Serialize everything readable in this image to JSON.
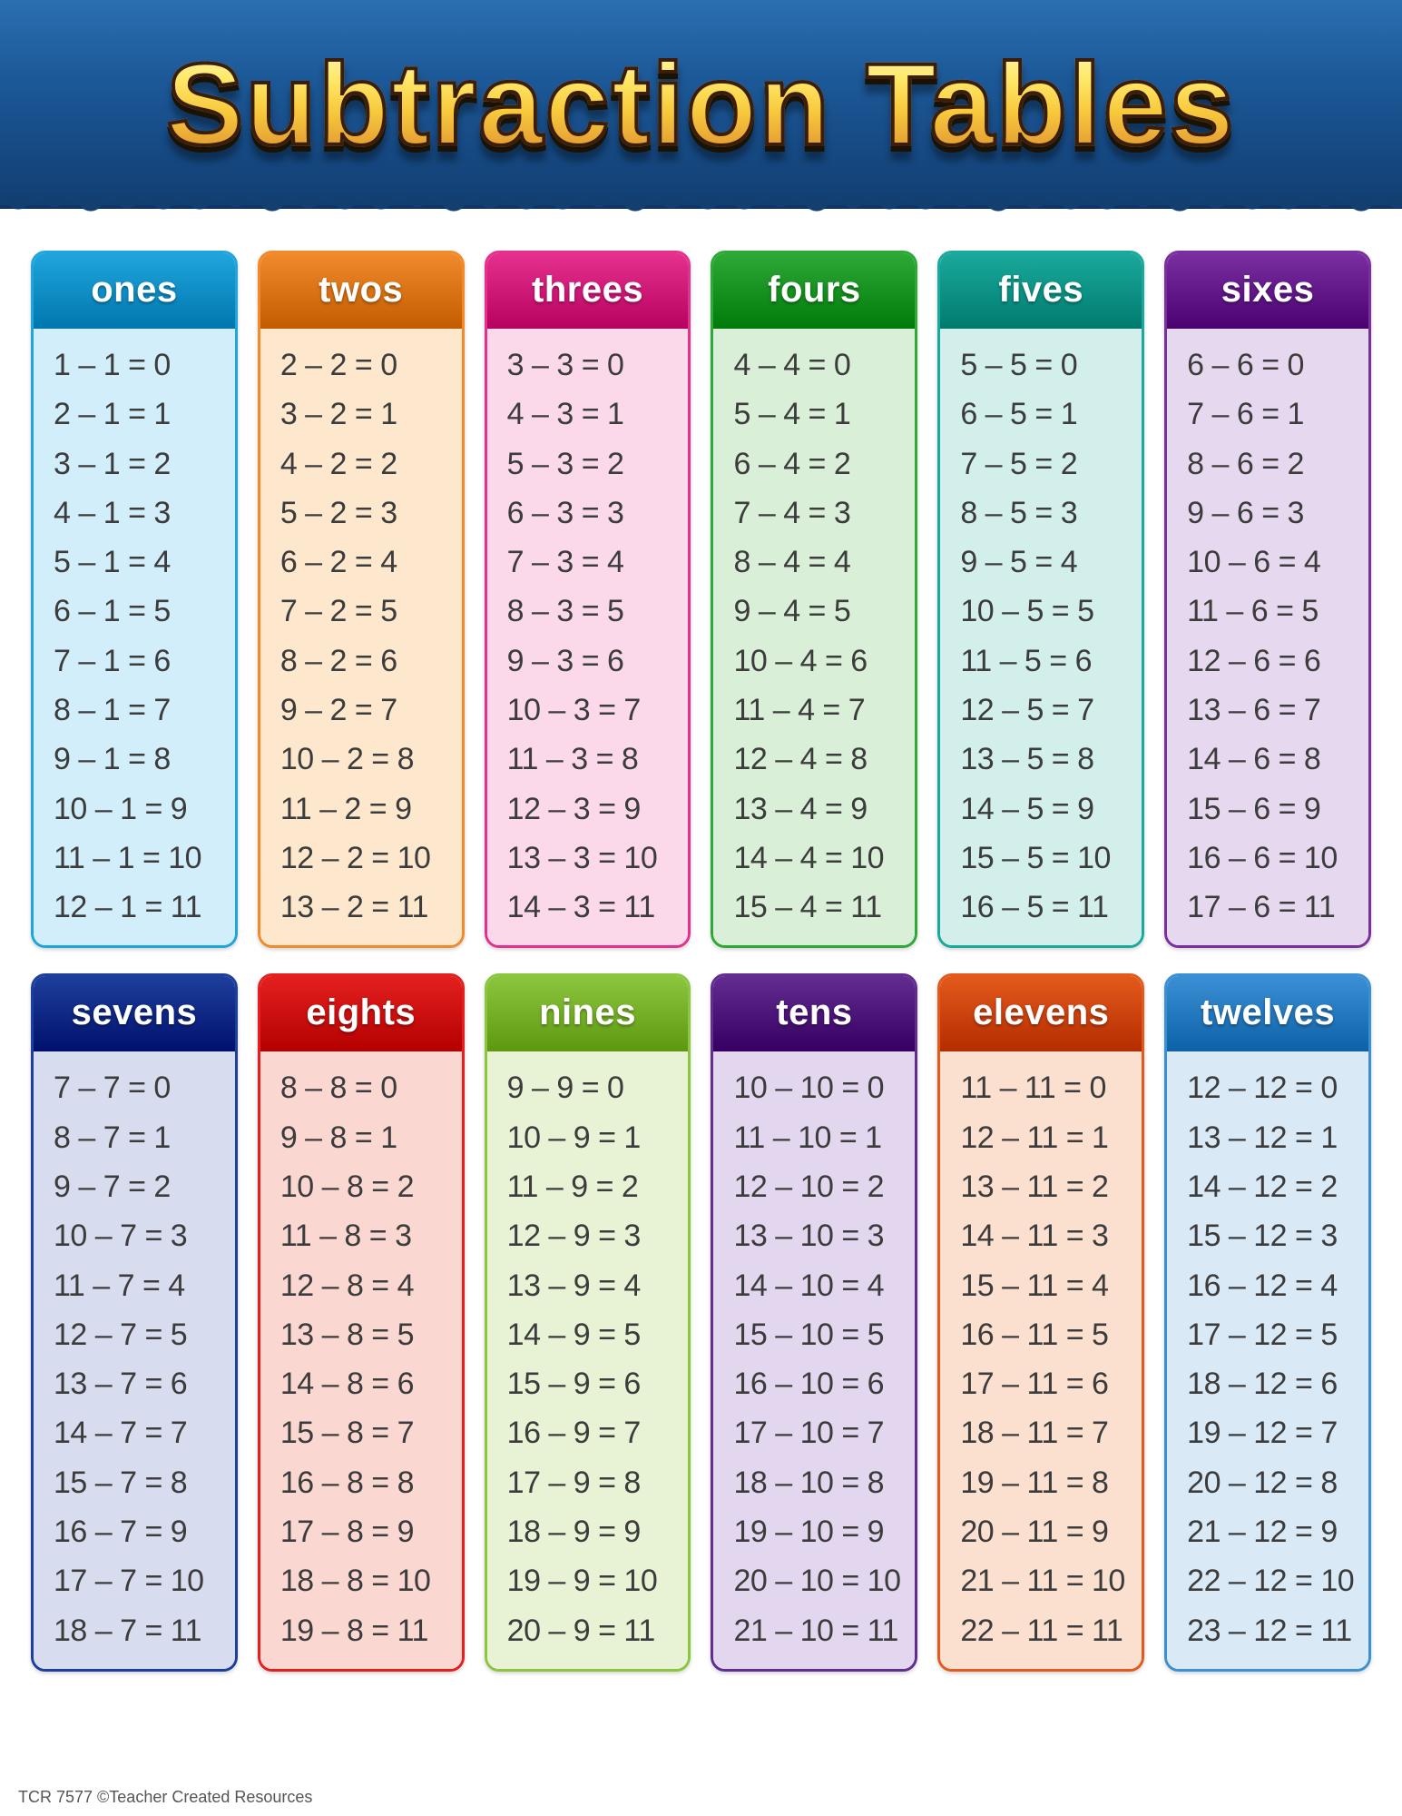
{
  "title": "Subtraction Tables",
  "title_style": {
    "fontsize": 128,
    "gradient_top": "#fff7c8",
    "gradient_bottom": "#c98423",
    "stroke": "#3a1e0b"
  },
  "banner_color_top": "#2a6fb0",
  "banner_color_bottom": "#123e70",
  "background_color": "#ffffff",
  "footer": "TCR 7577  ©Teacher Created Resources",
  "row_text_color": "#3c3c3c",
  "row_fontsize": 34,
  "header_fontsize": 40,
  "header_text_color": "#ffffff",
  "card_border_radius": 16,
  "tables": [
    {
      "label": "ones",
      "header_color": "#1fa5dc",
      "body_color": "#d2eefa",
      "border_color": "#1fa5dc",
      "rows": [
        "1 – 1 = 0",
        "2 – 1 = 1",
        "3 – 1 = 2",
        "4 – 1 = 3",
        "5 – 1 = 4",
        "6 – 1 = 5",
        "7 – 1 = 6",
        "8 – 1 = 7",
        "9 – 1 = 8",
        "10 – 1 = 9",
        "11 – 1 = 10",
        "12 – 1 = 11"
      ]
    },
    {
      "label": "twos",
      "header_color": "#f08a2c",
      "body_color": "#fde7cd",
      "border_color": "#f08a2c",
      "rows": [
        "2 – 2 = 0",
        "3 – 2 = 1",
        "4 – 2 = 2",
        "5 – 2 = 3",
        "6 – 2 = 4",
        "7 – 2 = 5",
        "8 – 2 = 6",
        "9 – 2 = 7",
        "10 – 2 = 8",
        "11 – 2 = 9",
        "12 – 2 = 10",
        "13 – 2 = 11"
      ]
    },
    {
      "label": "threes",
      "header_color": "#e6308e",
      "body_color": "#fbd9ea",
      "border_color": "#e6308e",
      "rows": [
        "3 – 3 = 0",
        "4 – 3 = 1",
        "5 – 3 = 2",
        "6 – 3 = 3",
        "7 – 3 = 4",
        "8 – 3 = 5",
        "9 – 3 = 6",
        "10 – 3 = 7",
        "11 – 3 = 8",
        "12 – 3 = 9",
        "13 – 3 = 10",
        "14 – 3 = 11"
      ]
    },
    {
      "label": "fours",
      "header_color": "#2ea836",
      "body_color": "#d9efd7",
      "border_color": "#2ea836",
      "rows": [
        "4 – 4 = 0",
        "5 – 4 = 1",
        "6 – 4 = 2",
        "7 – 4 = 3",
        "8 – 4 = 4",
        "9 – 4 = 5",
        "10 – 4 = 6",
        "11 – 4 = 7",
        "12 – 4 = 8",
        "13 – 4 = 9",
        "14 – 4 = 10",
        "15 – 4 = 11"
      ]
    },
    {
      "label": "fives",
      "header_color": "#1aa99c",
      "body_color": "#d2efeb",
      "border_color": "#1aa99c",
      "rows": [
        "5 – 5 = 0",
        "6 – 5 = 1",
        "7 – 5 = 2",
        "8 – 5 = 3",
        "9 – 5 = 4",
        "10 – 5 = 5",
        "11 – 5 = 6",
        "12 – 5 = 7",
        "13 – 5 = 8",
        "14 – 5 = 9",
        "15 – 5 = 10",
        "16 – 5 = 11"
      ]
    },
    {
      "label": "sixes",
      "header_color": "#7a2fa0",
      "body_color": "#e6d9ef",
      "border_color": "#7a2fa0",
      "rows": [
        "6 – 6 = 0",
        "7 – 6 = 1",
        "8 – 6 = 2",
        "9 – 6 = 3",
        "10 – 6 = 4",
        "11 – 6 = 5",
        "12 – 6 = 6",
        "13 – 6 = 7",
        "14 – 6 = 8",
        "15 – 6 = 9",
        "16 – 6 = 10",
        "17 – 6 = 11"
      ]
    },
    {
      "label": "sevens",
      "header_color": "#1d3f9b",
      "body_color": "#d7dcef",
      "border_color": "#1d3f9b",
      "rows": [
        "7 – 7 = 0",
        "8 – 7 = 1",
        "9 – 7 = 2",
        "10 – 7 = 3",
        "11 – 7 = 4",
        "12 – 7 = 5",
        "13 – 7 = 6",
        "14 – 7 = 7",
        "15 – 7 = 8",
        "16 – 7 = 9",
        "17 – 7 = 10",
        "18 – 7 = 11"
      ]
    },
    {
      "label": "eights",
      "header_color": "#e3201f",
      "body_color": "#fbd7d2",
      "border_color": "#e3201f",
      "rows": [
        "8 – 8 = 0",
        "9 – 8 = 1",
        "10 – 8 = 2",
        "11 – 8 = 3",
        "12 – 8 = 4",
        "13 – 8 = 5",
        "14 – 8 = 6",
        "15 – 8 = 7",
        "16 – 8 = 8",
        "17 – 8 = 9",
        "18 – 8 = 10",
        "19 – 8 = 11"
      ]
    },
    {
      "label": "nines",
      "header_color": "#8cc63f",
      "body_color": "#e8f3d6",
      "border_color": "#8cc63f",
      "rows": [
        "9 – 9 = 0",
        "10 – 9 = 1",
        "11 – 9 = 2",
        "12 – 9 = 3",
        "13 – 9 = 4",
        "14 – 9 = 5",
        "15 – 9 = 6",
        "16 – 9 = 7",
        "17 – 9 = 8",
        "18 – 9 = 9",
        "19 – 9 = 10",
        "20 – 9 = 11"
      ]
    },
    {
      "label": "tens",
      "header_color": "#632c90",
      "body_color": "#e2d7ee",
      "border_color": "#632c90",
      "rows": [
        "10 – 10 = 0",
        "11 – 10 = 1",
        "12 – 10 = 2",
        "13 – 10 = 3",
        "14 – 10 = 4",
        "15 – 10 = 5",
        "16 – 10 = 6",
        "17 – 10 = 7",
        "18 – 10 = 8",
        "19 – 10 = 9",
        "20 – 10 = 10",
        "21 – 10 = 11"
      ]
    },
    {
      "label": "elevens",
      "header_color": "#e35a1c",
      "body_color": "#fbe0d0",
      "border_color": "#e35a1c",
      "rows": [
        "11 – 11 = 0",
        "12 – 11 = 1",
        "13 – 11 = 2",
        "14 – 11 = 3",
        "15 – 11 = 4",
        "16 – 11 = 5",
        "17 – 11 = 6",
        "18 – 11 = 7",
        "19 – 11 = 8",
        "20 – 11 = 9",
        "21 – 11 = 10",
        "22 – 11 = 11"
      ]
    },
    {
      "label": "twelves",
      "header_color": "#3b8fd4",
      "body_color": "#d9e9f6",
      "border_color": "#3b8fd4",
      "rows": [
        "12 – 12 = 0",
        "13 – 12 = 1",
        "14 – 12 = 2",
        "15 – 12 = 3",
        "16 – 12 = 4",
        "17 – 12 = 5",
        "18 – 12 = 6",
        "19 – 12 = 7",
        "20 – 12 = 8",
        "21 – 12 = 9",
        "22 – 12 = 10",
        "23 – 12 = 11"
      ]
    }
  ]
}
